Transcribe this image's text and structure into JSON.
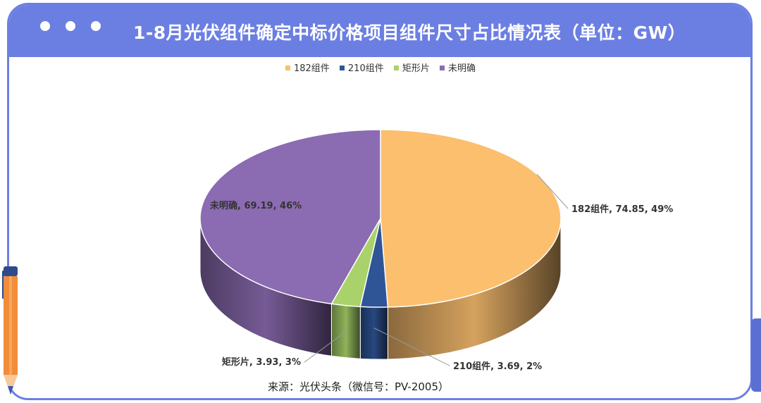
{
  "title": "1-8月光伏组件确定中标价格项目组件尺寸占比情况表（单位：GW）",
  "source": "来源：光伏头条（微信号：PV-2005）",
  "colors": {
    "frame": "#6b7fe3",
    "series": [
      "#fbbf6e",
      "#2f5597",
      "#a9d26a",
      "#8b6bb1"
    ]
  },
  "chart_data": {
    "type": "pie",
    "style": "3d",
    "legend_position": "top",
    "unit": "GW",
    "labels": [
      "182组件",
      "210组件",
      "矩形片",
      "未明确"
    ],
    "values": [
      74.85,
      3.69,
      3.93,
      69.19
    ],
    "percents": [
      49,
      2,
      3,
      46
    ],
    "data_labels": [
      "182组件, 74.85, 49%",
      "210组件, 3.69, 2%",
      "矩形片, 3.93, 3%",
      "未明确, 69.19, 46%"
    ]
  }
}
